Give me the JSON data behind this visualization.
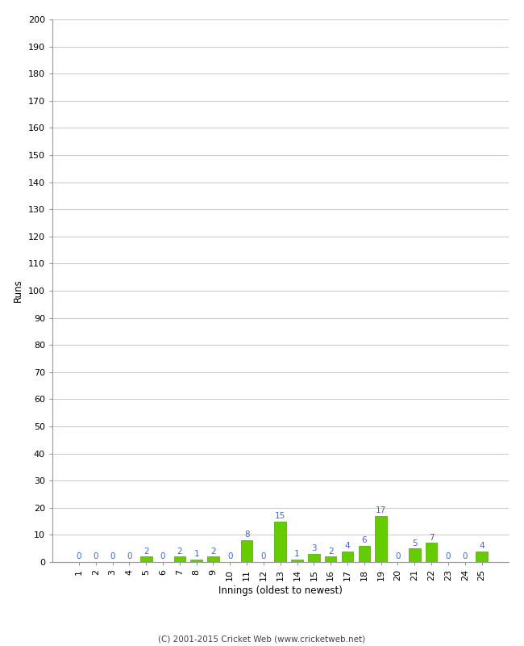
{
  "innings": [
    1,
    2,
    3,
    4,
    5,
    6,
    7,
    8,
    9,
    10,
    11,
    12,
    13,
    14,
    15,
    16,
    17,
    18,
    19,
    20,
    21,
    22,
    23,
    24,
    25
  ],
  "runs": [
    0,
    0,
    0,
    0,
    2,
    0,
    2,
    1,
    2,
    0,
    8,
    0,
    15,
    1,
    3,
    2,
    4,
    6,
    17,
    0,
    5,
    7,
    0,
    0,
    4
  ],
  "bar_color": "#66cc00",
  "bar_edge_color": "#44aa00",
  "label_color": "#4466cc",
  "ylabel": "Runs",
  "xlabel": "Innings (oldest to newest)",
  "ylim": [
    0,
    200
  ],
  "yticks": [
    0,
    10,
    20,
    30,
    40,
    50,
    60,
    70,
    80,
    90,
    100,
    110,
    120,
    130,
    140,
    150,
    160,
    170,
    180,
    190,
    200
  ],
  "footer": "(C) 2001-2015 Cricket Web (www.cricketweb.net)",
  "background_color": "#ffffff",
  "grid_color": "#cccccc",
  "label_fontsize": 7.5,
  "axis_label_fontsize": 8.5,
  "tick_fontsize": 8,
  "footer_fontsize": 7.5
}
